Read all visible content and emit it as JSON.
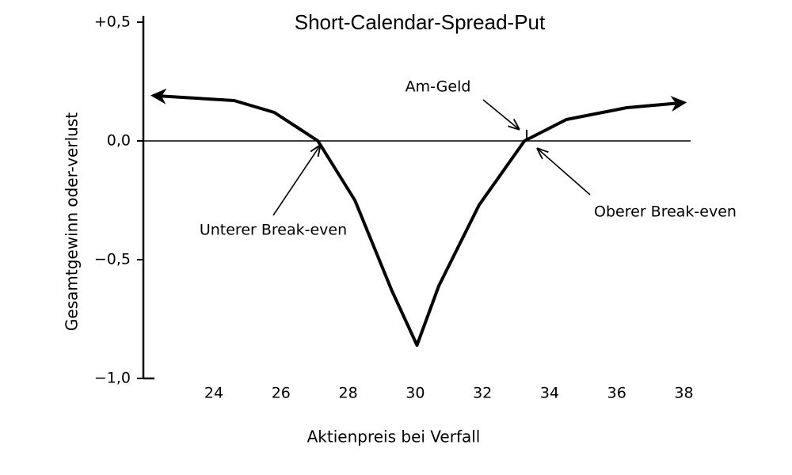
{
  "chart_data": {
    "type": "line",
    "title": "Short-Calendar-Spread-Put",
    "x_label": "Aktienpreis bei Verfall",
    "y_label": "Gesamtgewinn oder-verlust",
    "xlim": [
      21.9,
      38.2
    ],
    "xticks": [
      24,
      26,
      28,
      30,
      32,
      34,
      36,
      38
    ],
    "ylim": [
      -1.0,
      0.5
    ],
    "yticks": [
      {
        "value": 0.5,
        "label": "+0,5"
      },
      {
        "value": 0,
        "label": "0,0"
      },
      {
        "value": -0.5,
        "label": "−0,5"
      },
      {
        "value": -1.0,
        "label": "−1,0"
      }
    ],
    "series": [
      {
        "color": "#000000",
        "x": [
          22.3,
          24.6,
          25.8,
          27.1,
          28.2,
          29.3,
          30.05,
          30.7,
          31.9,
          33.25,
          34.5,
          36.3,
          37.9
        ],
        "values": [
          0.19,
          0.17,
          0.12,
          0.0,
          -0.25,
          -0.63,
          -0.86,
          -0.61,
          -0.27,
          0.0,
          0.09,
          0.14,
          0.16
        ]
      }
    ],
    "annotations": [
      "Am-Geld",
      "Unterer Break-even",
      "Oberer Break-even"
    ]
  }
}
